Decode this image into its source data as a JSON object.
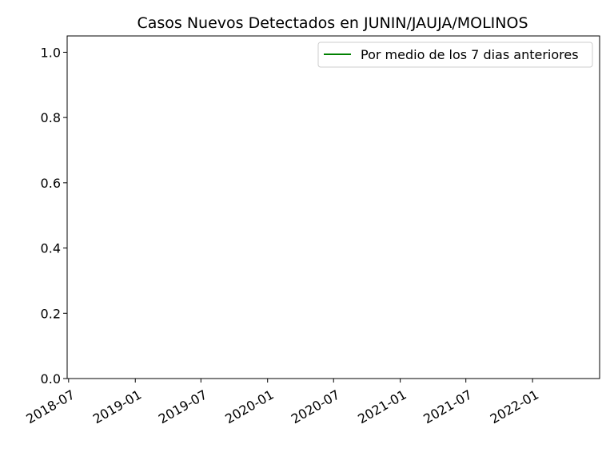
{
  "chart_data": {
    "type": "line",
    "title": "Casos Nuevos Detectados en JUNIN/JAUJA/MOLINOS",
    "xlabel": "",
    "ylabel": "",
    "x_type": "date",
    "xlim": [
      "2018-06-27",
      "2022-07-05"
    ],
    "ylim": [
      0.0,
      1.05
    ],
    "x_ticks": [
      "2018-07",
      "2019-01",
      "2019-07",
      "2020-01",
      "2020-07",
      "2021-01",
      "2021-07",
      "2022-01"
    ],
    "y_ticks": [
      "0.0",
      "0.2",
      "0.4",
      "0.6",
      "0.8",
      "1.0"
    ],
    "grid": false,
    "legend": {
      "placement": "top-right"
    },
    "series": [
      {
        "name": "Por medio de los 7 dias anteriores",
        "color": "#008000",
        "x": [],
        "y": []
      }
    ]
  }
}
